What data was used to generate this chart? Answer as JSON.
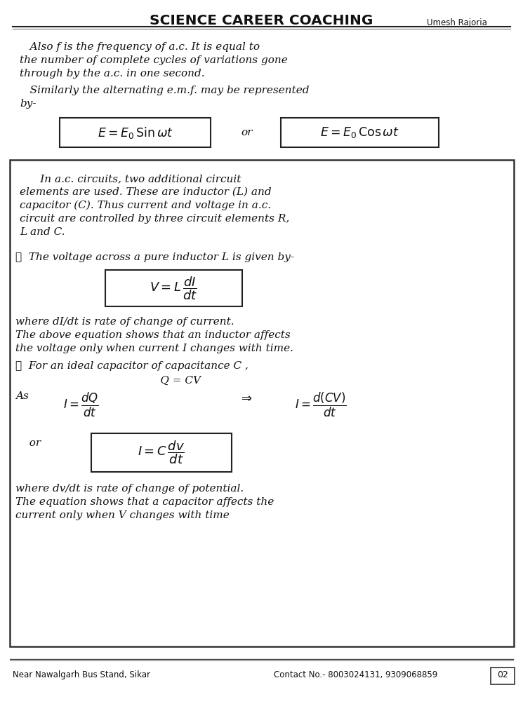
{
  "title": "SCIENCE CAREER COACHING",
  "subtitle_right": "Umesh Rajoria",
  "footer_left": "Near Nawalgarh Bus Stand, Sikar",
  "footer_right": "Contact No.- 8003024131, 9309068859",
  "page_num": "02",
  "bg_color": "#ffffff",
  "text_color": "#111111",
  "font_size_title": 14.5,
  "font_size_body": 11.0,
  "para1_line1": "   Also f is the frequency of a.c. It is equal to",
  "para1_line2": "the number of complete cycles of variations gone",
  "para1_line3": "through by the a.c. in one second.",
  "para2_line1": "   Similarly the alternating e.m.f. may be represented",
  "para2_line2": "by-",
  "formula_or": "or",
  "box_line1": "      In a.c. circuits, two additional circuit",
  "box_line2": "elements are used. These are inductor (L) and",
  "box_line3": "capacitor (C). Thus current and voltage in a.c.",
  "box_line4": "circuit are controlled by three circuit elements R,",
  "box_line5": "L and C.",
  "star1": "★  The voltage across a pure inductor L is given by-",
  "para3_line1": "where dI/dt is rate of change of current.",
  "para3_line2": "The above equation shows that an inductor affects",
  "para3_line3": "the voltage only when current I changes with time.",
  "star2": "★  For an ideal capacitor of capacitance C ,",
  "qcv": "             Q = CV",
  "as_line": "As",
  "or_line": "  or",
  "para6_line1": "where dv/dt is rate of change of potential.",
  "para6_line2": "The equation shows that a capacitor affects the",
  "para6_line3": "current only when V changes with time"
}
